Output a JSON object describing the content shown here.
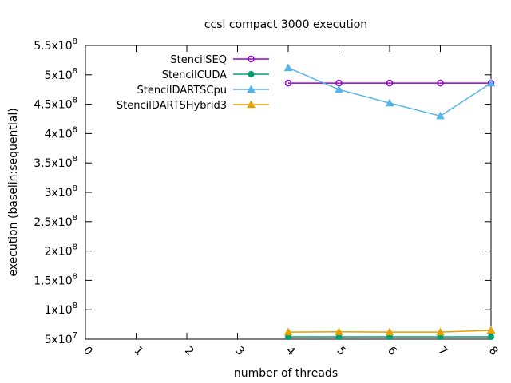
{
  "chart_data": {
    "type": "line",
    "title": "ccsl compact 3000 execution",
    "xlabel": "number of threads",
    "ylabel": "execution (baselin:sequential)",
    "xlim": [
      0,
      8
    ],
    "ylim": [
      50000000,
      550000000
    ],
    "x_ticks": [
      "0",
      "1",
      "2",
      "3",
      "4",
      "5",
      "6",
      "7",
      "8"
    ],
    "y_ticks": [
      {
        "value": 50000000,
        "mantissa": "5",
        "exp": "7"
      },
      {
        "value": 100000000,
        "mantissa": "1",
        "exp": "8"
      },
      {
        "value": 150000000,
        "mantissa": "1.5",
        "exp": "8"
      },
      {
        "value": 200000000,
        "mantissa": "2",
        "exp": "8"
      },
      {
        "value": 250000000,
        "mantissa": "2.5",
        "exp": "8"
      },
      {
        "value": 300000000,
        "mantissa": "3",
        "exp": "8"
      },
      {
        "value": 350000000,
        "mantissa": "3.5",
        "exp": "8"
      },
      {
        "value": 400000000,
        "mantissa": "4",
        "exp": "8"
      },
      {
        "value": 450000000,
        "mantissa": "4.5",
        "exp": "8"
      },
      {
        "value": 500000000,
        "mantissa": "5",
        "exp": "8"
      },
      {
        "value": 550000000,
        "mantissa": "5.5",
        "exp": "8"
      }
    ],
    "legend_position": "top-left",
    "grid": false,
    "x": [
      4,
      5,
      6,
      7,
      8
    ],
    "series": [
      {
        "name": "StencilSEQ",
        "color": "#9400d3",
        "marker": "circle-open",
        "values": [
          486000000,
          486000000,
          486000000,
          486000000,
          486000000
        ]
      },
      {
        "name": "StencilCUDA",
        "color": "#009e73",
        "marker": "circle-filled",
        "values": [
          54000000,
          54000000,
          54000000,
          54000000,
          54000000
        ]
      },
      {
        "name": "StencilDARTSCpu",
        "color": "#56b4e9",
        "marker": "triangle",
        "values": [
          512000000,
          475000000,
          452000000,
          430000000,
          486000000
        ]
      },
      {
        "name": "StencilDARTSHybrid3",
        "color": "#e69f00",
        "marker": "triangle",
        "values": [
          62000000,
          62500000,
          62000000,
          62000000,
          65000000
        ]
      }
    ]
  }
}
